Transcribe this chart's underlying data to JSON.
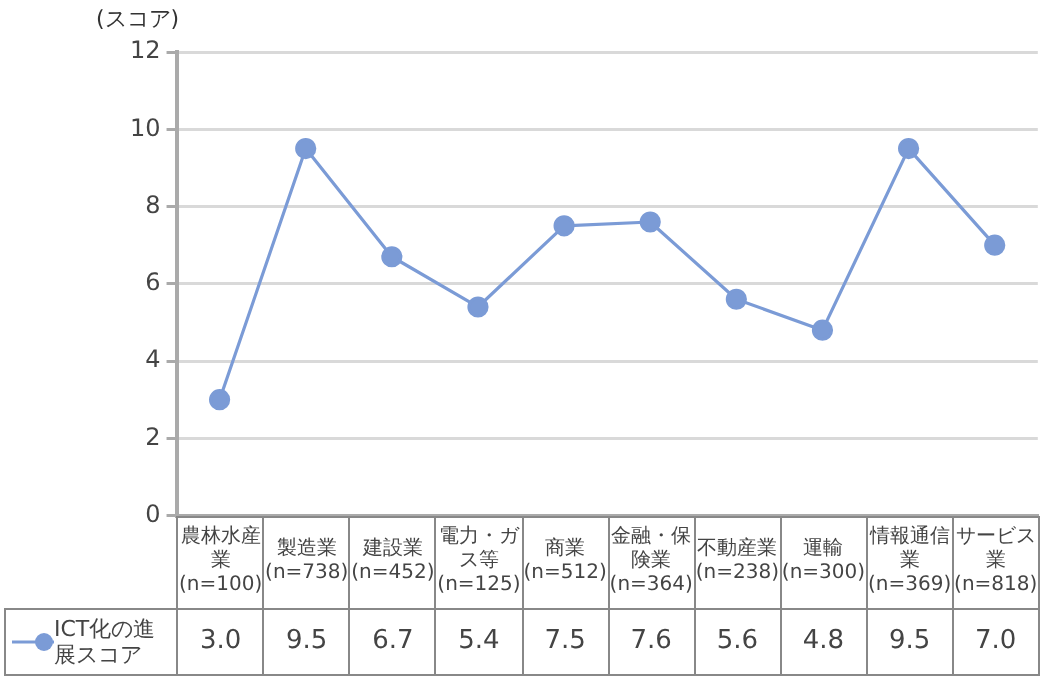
{
  "chart_data": {
    "type": "line",
    "ylabel": "(スコア)",
    "categories": [
      "農林水産業(n=100)",
      "製造業(n=738)",
      "建設業(n=452)",
      "電力・ガス等(n=125)",
      "商業(n=512)",
      "金融・保険業(n=364)",
      "不動産業(n=238)",
      "運輸(n=300)",
      "情報通信業(n=369)",
      "サービス業(n=818)"
    ],
    "series": [
      {
        "name": "ICT化の進展スコア",
        "color": "#7b9bd6",
        "values": [
          3.0,
          9.5,
          6.7,
          5.4,
          7.5,
          7.6,
          5.6,
          4.8,
          9.5,
          7.0
        ],
        "value_labels": [
          "3.0",
          "9.5",
          "6.7",
          "5.4",
          "7.5",
          "7.6",
          "5.6",
          "4.8",
          "9.5",
          "7.0"
        ]
      }
    ],
    "ylim": [
      0,
      12
    ],
    "yticks": [
      0,
      2,
      4,
      6,
      8,
      10,
      12
    ],
    "grid": "y",
    "legend": "bottom left",
    "marker": "circle"
  }
}
